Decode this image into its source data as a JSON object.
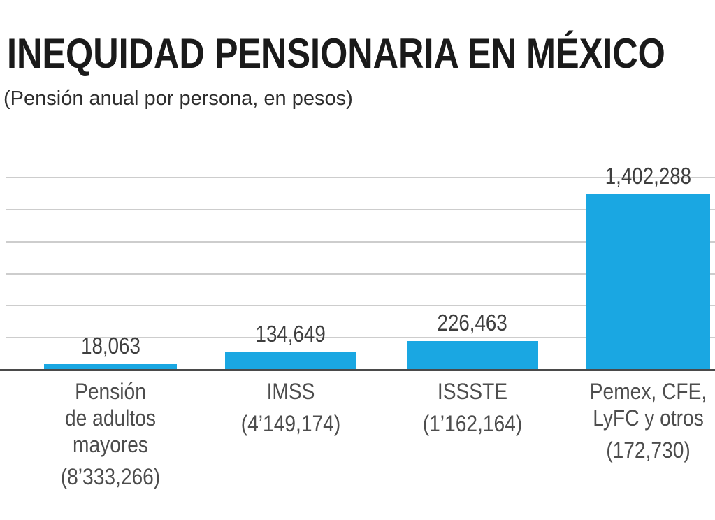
{
  "page": {
    "background": "#ffffff"
  },
  "header": {
    "title": "INEQUIDAD PENSIONARIA EN MÉXICO",
    "subtitle": "(Pensión anual por persona, en pesos)"
  },
  "chart_data": {
    "type": "bar",
    "title": "INEQUIDAD PENSIONARIA EN MÉXICO",
    "subtitle": "(Pensión anual por persona, en pesos)",
    "ylabel": "Pensión anual por persona (pesos)",
    "xlabel": "",
    "ids": [
      "pension-adultos-mayores",
      "imss",
      "issste",
      "pemex-cfe-lyfc-otros"
    ],
    "categories": [
      "Pensión de adultos mayores",
      "IMSS",
      "ISSSTE",
      "Pemex, CFE, LyFC y otros"
    ],
    "category_lines": [
      [
        "Pensión",
        "de adultos",
        "mayores"
      ],
      [
        "IMSS"
      ],
      [
        "ISSSTE"
      ],
      [
        "Pemex, CFE,",
        "LyFC y otros"
      ]
    ],
    "values": [
      18063,
      134649,
      226463,
      1402288
    ],
    "value_labels": [
      "18,063",
      "134,649",
      "226,463",
      "1,402,288"
    ],
    "annotations": [
      "(8’333,266)",
      "(4’149,174)",
      "(1’162,164)",
      "(172,730)"
    ],
    "ylim": [
      0,
      1550000
    ],
    "grid": true,
    "gridline_step_approx": 250000,
    "legend_position": "none",
    "colors": {
      "bar": "#1aa7e2",
      "axis": "#4a4a4a",
      "gridline": "#cdcdcd",
      "title": "#1a1a1a",
      "subtitle": "#2e2e2e",
      "value_label": "#3e3e3e",
      "category_label": "#4d4d4d"
    }
  }
}
